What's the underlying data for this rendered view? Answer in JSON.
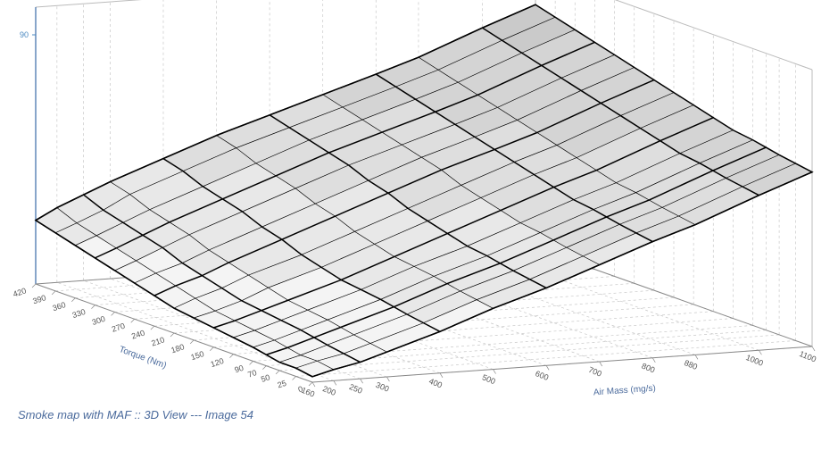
{
  "chart": {
    "type": "surface3d",
    "caption": "Smoke map with MAF :: 3D View --- Image 54",
    "x_axis": {
      "label": "Air Mass (mg/s)",
      "ticks": [
        160,
        200,
        250,
        300,
        400,
        500,
        600,
        700,
        800,
        880,
        1000,
        1100
      ],
      "range": [
        160,
        1100
      ]
    },
    "y_axis": {
      "label": "Torque (Nm)",
      "ticks": [
        0,
        25,
        50,
        70,
        90,
        120,
        150,
        180,
        210,
        240,
        270,
        300,
        330,
        360,
        390,
        420
      ],
      "range": [
        0,
        420
      ]
    },
    "z_axis": {
      "label": "",
      "ticks": [
        90
      ],
      "range": [
        0,
        100
      ]
    },
    "surface": {
      "z_values": [
        [
          2,
          4,
          6,
          9,
          15,
          22,
          28,
          35,
          42,
          47,
          56,
          63
        ],
        [
          3,
          5,
          7,
          10,
          16,
          23,
          29,
          36,
          43,
          48,
          57,
          64
        ],
        [
          3,
          5,
          8,
          11,
          17,
          24,
          30,
          37,
          44,
          49,
          58,
          65
        ],
        [
          4,
          6,
          9,
          12,
          18,
          25,
          31,
          38,
          45,
          50,
          59,
          66
        ],
        [
          5,
          7,
          10,
          13,
          19,
          26,
          32,
          39,
          46,
          51,
          60,
          67
        ],
        [
          6,
          8,
          11,
          14,
          20,
          27,
          33,
          40,
          47,
          52,
          61,
          68
        ],
        [
          7,
          9,
          12,
          15,
          21,
          28,
          35,
          42,
          49,
          54,
          63,
          70
        ],
        [
          8,
          10,
          13,
          17,
          23,
          30,
          37,
          44,
          51,
          56,
          65,
          72
        ],
        [
          9,
          12,
          15,
          19,
          25,
          32,
          39,
          46,
          53,
          58,
          67,
          74
        ],
        [
          11,
          14,
          17,
          21,
          28,
          35,
          42,
          49,
          55,
          60,
          69,
          76
        ],
        [
          13,
          16,
          19,
          23,
          30,
          37,
          44,
          51,
          57,
          62,
          71,
          78
        ],
        [
          15,
          18,
          22,
          26,
          33,
          40,
          47,
          53,
          59,
          64,
          73,
          80
        ],
        [
          17,
          20,
          24,
          28,
          35,
          42,
          49,
          55,
          61,
          66,
          75,
          82
        ],
        [
          19,
          22,
          26,
          30,
          37,
          44,
          51,
          57,
          63,
          68,
          77,
          84
        ],
        [
          21,
          24,
          28,
          33,
          40,
          47,
          53,
          59,
          65,
          70,
          79,
          86
        ],
        [
          23,
          27,
          31,
          35,
          42,
          49,
          55,
          61,
          67,
          72,
          81,
          88
        ]
      ],
      "mesh_stroke": "#000000",
      "mesh_stroke_width": 0.6,
      "main_grid_step_x": 2,
      "main_grid_step_y": 3,
      "main_grid_stroke_width": 1.5,
      "fill_colors": [
        "#f4f4f4",
        "#e8e8e8",
        "#dedede",
        "#d4d4d4",
        "#cacaca"
      ]
    },
    "box": {
      "wall_stroke": "#bbbbbb",
      "grid_stroke": "#c8c8c8",
      "grid_dash": "3,3",
      "floor_fill": "none",
      "stroke_width": 0.7
    },
    "background_color": "#ffffff",
    "text_color": "#4a6a9c",
    "tick_color": "#555555"
  }
}
